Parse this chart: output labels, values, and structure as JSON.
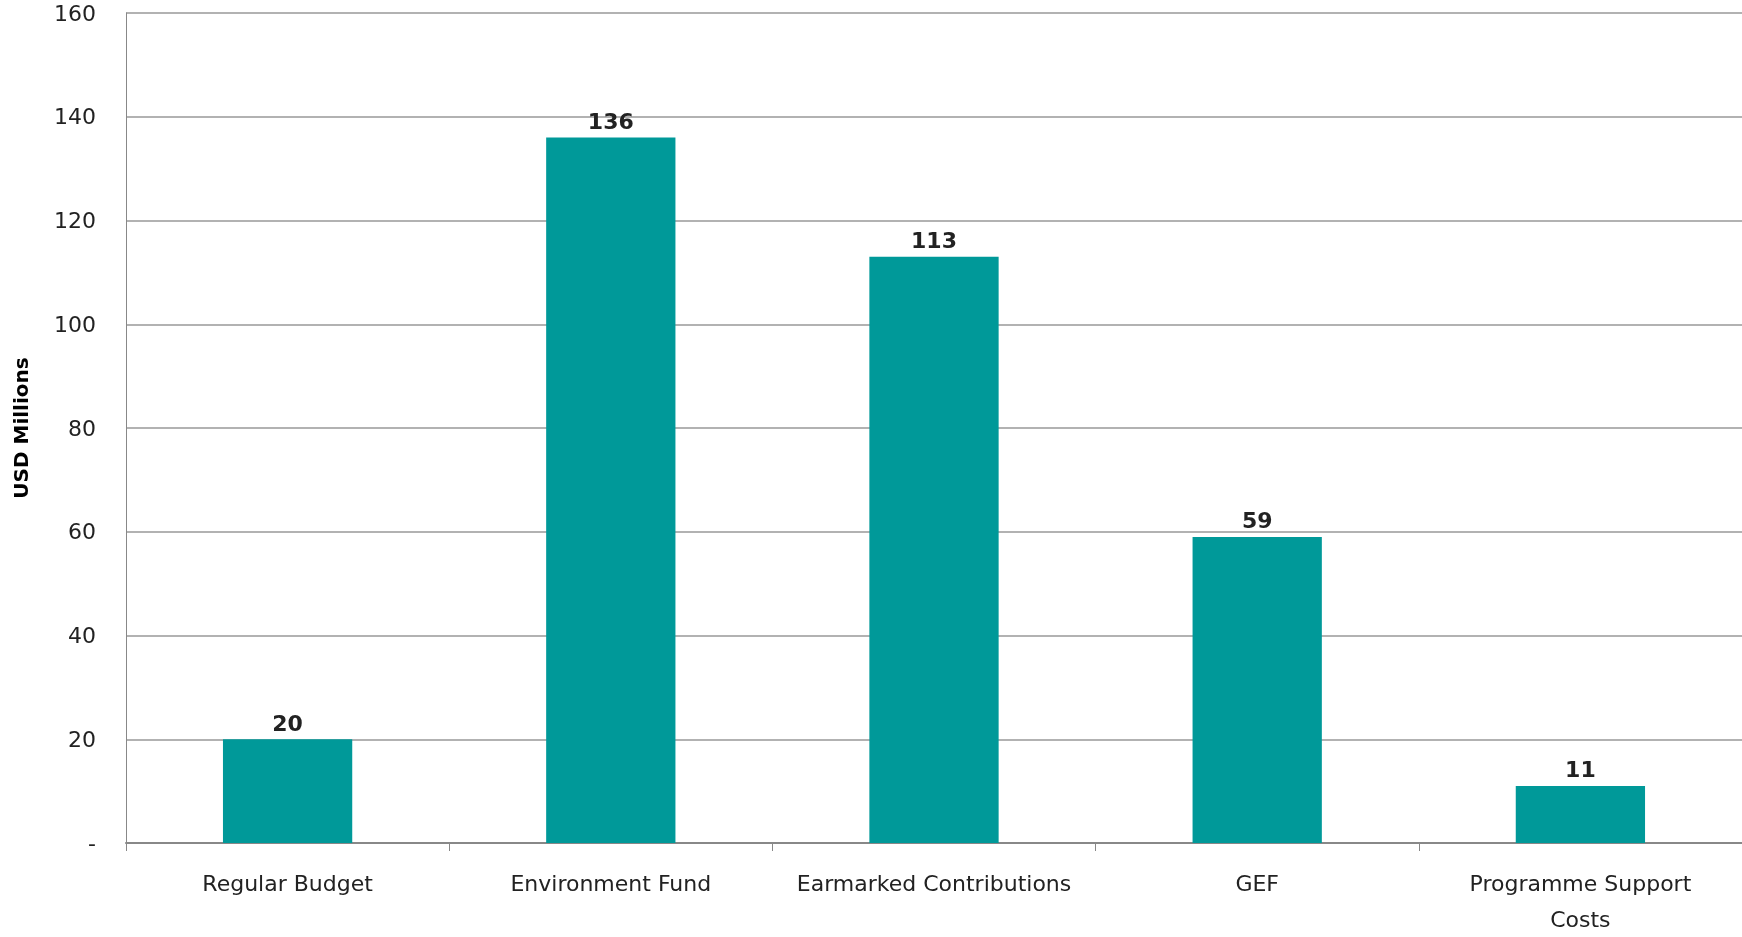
{
  "chart_data": {
    "type": "bar",
    "ylabel": "USD Millions",
    "categories": [
      "Regular Budget",
      "Environment Fund",
      "Earmarked Contributions",
      "GEF",
      "Programme Support\nCosts"
    ],
    "values": [
      20,
      136,
      113,
      59,
      11
    ],
    "color": "#009999",
    "ylim": [
      0,
      160
    ],
    "yticks": [
      {
        "value": 0,
        "label": "-"
      },
      20,
      40,
      60,
      80,
      100,
      120,
      140,
      160
    ],
    "grid": "y",
    "data_labels": true
  }
}
